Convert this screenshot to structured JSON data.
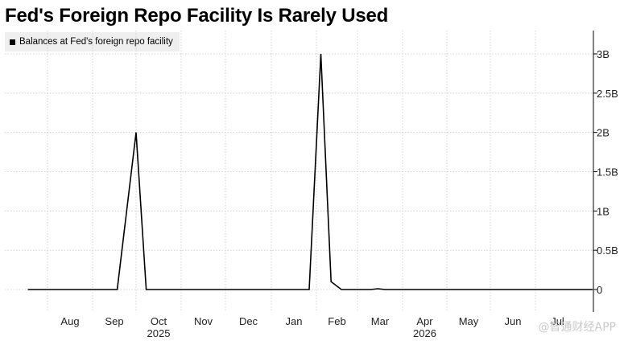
{
  "chart_data": {
    "type": "line",
    "title": "Fed's Foreign Repo Facility Is Rarely Used",
    "series": [
      {
        "name": "Balances at Fed's foreign repo facility",
        "color": "#000000",
        "points": [
          [
            "2025-07-18",
            0
          ],
          [
            "2025-09-18",
            0
          ],
          [
            "2025-10-01",
            2
          ],
          [
            "2025-10-08",
            0
          ],
          [
            "2026-01-27",
            0
          ],
          [
            "2026-02-04",
            3
          ],
          [
            "2026-02-11",
            0.1
          ],
          [
            "2026-02-18",
            0
          ],
          [
            "2026-03-10",
            0
          ],
          [
            "2026-03-15",
            0.01
          ],
          [
            "2026-03-20",
            0
          ],
          [
            "2026-08-10",
            0
          ]
        ]
      }
    ],
    "x_ticks": [
      "Aug",
      "Sep",
      "Oct",
      "Nov",
      "Dec",
      "Jan",
      "Feb",
      "Mar",
      "Apr",
      "May",
      "Jun",
      "Jul"
    ],
    "year_labels": [
      {
        "month": "Oct",
        "label": "2025"
      },
      {
        "month": "Apr",
        "label": "2026"
      }
    ],
    "y_ticks": [
      {
        "value": 3,
        "label": "3B"
      },
      {
        "value": 2.5,
        "label": "2.5B"
      },
      {
        "value": 2,
        "label": "2B"
      },
      {
        "value": 1.5,
        "label": "1.5B"
      },
      {
        "value": 1,
        "label": "1B"
      },
      {
        "value": 0.5,
        "label": "0.5B"
      },
      {
        "value": 0,
        "label": "0"
      }
    ],
    "ylim": [
      -0.3,
      3.3
    ],
    "yaxis_side": "right",
    "grid": true,
    "legend_position": "top-left"
  },
  "watermark": "@智通财经APP"
}
